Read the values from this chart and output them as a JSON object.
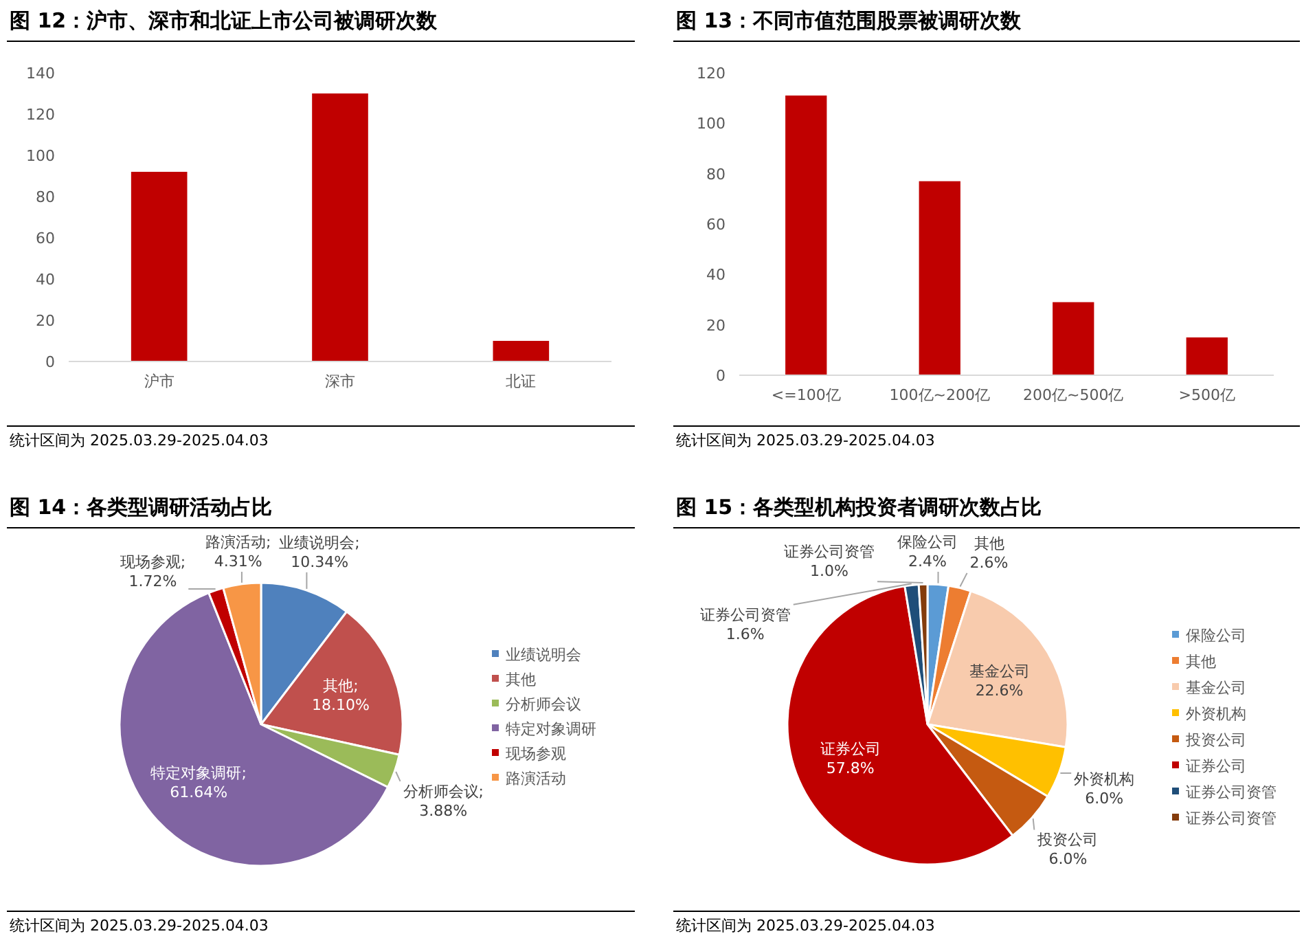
{
  "chart_data": [
    {
      "type": "bar",
      "title": "图 12：沪市、深市和北证上市公司被调研次数",
      "categories": [
        "沪市",
        "深市",
        "北证"
      ],
      "values": [
        92,
        130,
        10
      ],
      "color": "#c00000",
      "ylim": [
        0,
        140
      ],
      "yticks": [
        0,
        20,
        40,
        60,
        80,
        100,
        120,
        140
      ],
      "annotations": [
        "统计区间为 2025.03.29-2025.04.03"
      ]
    },
    {
      "type": "bar",
      "title": "图 13：不同市值范围股票被调研次数",
      "categories": [
        "<=100亿",
        "100亿~200亿",
        "200亿~500亿",
        ">500亿"
      ],
      "values": [
        111,
        77,
        29,
        15
      ],
      "color": "#c00000",
      "ylim": [
        0,
        120
      ],
      "yticks": [
        0,
        20,
        40,
        60,
        80,
        100,
        120
      ],
      "annotations": [
        "统计区间为 2025.03.29-2025.04.03"
      ]
    },
    {
      "type": "pie",
      "title": "图 14：各类型调研活动占比",
      "categories": [
        "业绩说明会",
        "其他",
        "分析师会议",
        "特定对象调研",
        "现场参观",
        "路演活动"
      ],
      "values": [
        10.34,
        18.1,
        3.88,
        61.64,
        1.72,
        4.31
      ],
      "colors": [
        "#4f81bd",
        "#c0504d",
        "#9bbb59",
        "#8064a2",
        "#c00000",
        "#f79646"
      ],
      "value_labels": [
        "业绩说明会;10.34%",
        "其他;18.10%",
        "分析师会议;3.88%",
        "特定对象调研;61.64%",
        "现场参观;1.72%",
        "路演活动;4.31%"
      ],
      "legend": "right",
      "annotations": [
        "统计区间为 2025.03.29-2025.04.03"
      ]
    },
    {
      "type": "pie",
      "title": "图 15：各类型机构投资者调研次数占比",
      "categories": [
        "保险公司",
        "其他",
        "基金公司",
        "外资机构",
        "投资公司",
        "证券公司",
        "证券公司资管",
        "证券公司资管"
      ],
      "values": [
        2.4,
        2.6,
        22.6,
        6.0,
        6.0,
        57.8,
        1.6,
        1.0
      ],
      "colors": [
        "#5b9bd5",
        "#ed7d31",
        "#f8cbad",
        "#ffc000",
        "#c55a11",
        "#c00000",
        "#1f4e79",
        "#843c0c"
      ],
      "value_labels": [
        "保险公司 2.4%",
        "其他 2.6%",
        "基金公司 22.6%",
        "外资机构 6.0%",
        "投资公司 6.0%",
        "证券公司 57.8%",
        "证券公司资管 1.6%",
        "证券公司资管 1.0%"
      ],
      "legend": "right",
      "annotations": [
        "统计区间为 2025.03.29-2025.04.03"
      ]
    }
  ]
}
